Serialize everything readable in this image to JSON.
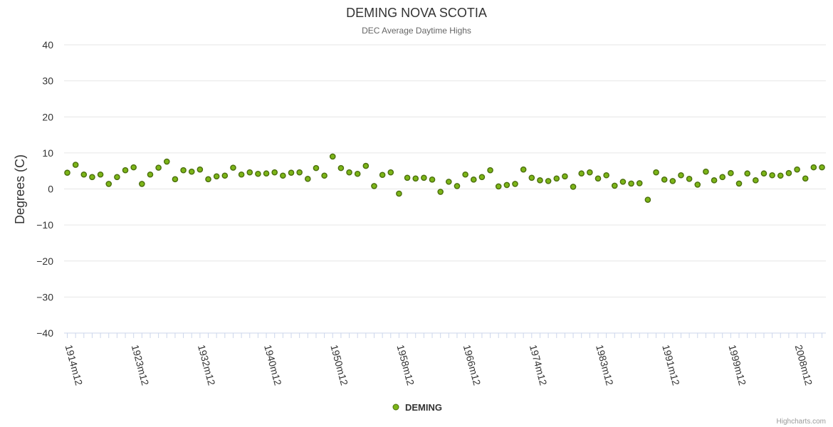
{
  "chart_data": {
    "type": "scatter",
    "title": "DEMING NOVA SCOTIA",
    "subtitle": "DEC Average Daytime Highs",
    "ylabel": "Degrees (C)",
    "xlabel": "",
    "ylim": [
      -40,
      40
    ],
    "yticks": [
      40,
      30,
      20,
      10,
      0,
      -10,
      -20,
      -30,
      -40
    ],
    "ytick_labels": [
      "40",
      "30",
      "20",
      "10",
      "0",
      "−10",
      "−20",
      "−30",
      "−40"
    ],
    "xtick_labels": [
      "1914m12",
      "1923m12",
      "1932m12",
      "1940m12",
      "1950m12",
      "1958m12",
      "1966m12",
      "1974m12",
      "1983m12",
      "1991m12",
      "1999m12",
      "2008m12"
    ],
    "xtick_index": [
      0,
      8,
      16,
      24,
      32,
      40,
      48,
      56,
      64,
      72,
      80,
      88
    ],
    "n_categories": 92,
    "legend": "top",
    "series": [
      {
        "name": "DEMING",
        "color": "#7cb518",
        "values": [
          4.5,
          6.7,
          4.0,
          3.3,
          4.0,
          1.4,
          3.3,
          5.2,
          6.0,
          1.4,
          4.0,
          5.9,
          7.6,
          2.7,
          5.2,
          4.8,
          5.4,
          2.7,
          3.5,
          3.7,
          5.9,
          4.0,
          4.6,
          4.2,
          4.3,
          4.6,
          3.7,
          4.5,
          4.6,
          2.8,
          5.8,
          3.7,
          9.0,
          5.8,
          4.6,
          4.2,
          6.4,
          0.8,
          3.9,
          4.6,
          -1.3,
          3.1,
          2.9,
          3.1,
          2.6,
          -0.8,
          2.0,
          0.8,
          4.0,
          2.6,
          3.3,
          5.2,
          0.7,
          1.1,
          1.4,
          5.4,
          3.1,
          2.4,
          2.2,
          2.9,
          3.5,
          0.6,
          4.3,
          4.6,
          2.9,
          3.8,
          0.9,
          2.0,
          1.5,
          1.6,
          -3.0,
          4.6,
          2.6,
          2.2,
          3.8,
          2.8,
          1.2,
          4.8,
          2.4,
          3.3,
          4.4,
          1.5,
          4.3,
          2.4,
          4.3,
          3.8,
          3.7,
          4.4,
          5.4,
          2.9,
          6.0,
          6.0
        ]
      }
    ]
  },
  "credits": "Highcharts.com"
}
